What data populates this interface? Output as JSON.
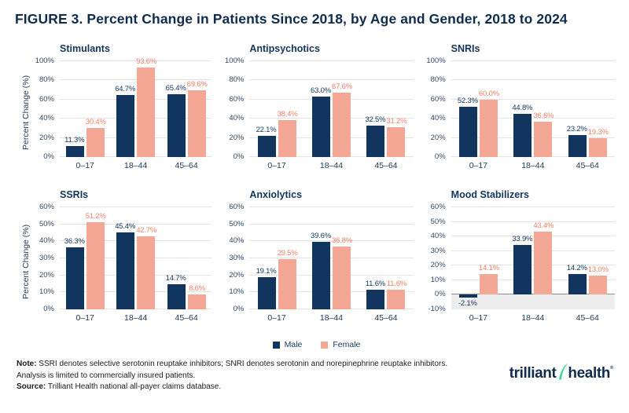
{
  "figure_title": "FIGURE 3. Percent Change in Patients Since 2018, by Age and Gender, 2018 to 2024",
  "colors": {
    "male_bar": "#12355F",
    "female_bar": "#F4A795",
    "male_label": "#12365B",
    "female_label": "#EE8166",
    "grid": "#E3E3E3",
    "zero_line": "#8F8F8F",
    "negative_band": "#EDEDED",
    "title_navy": "#0F2C4E",
    "logo_green": "#3FD6A0"
  },
  "chart_data": [
    {
      "type": "bar",
      "title": "Stimulants",
      "categories": [
        "0–17",
        "18–44",
        "45–64"
      ],
      "series": [
        {
          "name": "Male",
          "values": [
            11.3,
            64.7,
            65.4
          ]
        },
        {
          "name": "Female",
          "values": [
            30.4,
            93.6,
            69.6
          ]
        }
      ],
      "ylabel": "Percent Change (%)",
      "ylim": [
        0,
        100
      ],
      "ytick_step": 20,
      "grid": true
    },
    {
      "type": "bar",
      "title": "Antipsychotics",
      "categories": [
        "0–17",
        "18–44",
        "45–64"
      ],
      "series": [
        {
          "name": "Male",
          "values": [
            22.1,
            63.0,
            32.5
          ]
        },
        {
          "name": "Female",
          "values": [
            38.4,
            67.6,
            31.2
          ]
        }
      ],
      "ylabel": "",
      "ylim": [
        0,
        100
      ],
      "ytick_step": 20,
      "grid": true
    },
    {
      "type": "bar",
      "title": "SNRIs",
      "categories": [
        "0–17",
        "18–44",
        "45–64"
      ],
      "series": [
        {
          "name": "Male",
          "values": [
            52.3,
            44.8,
            23.2
          ]
        },
        {
          "name": "Female",
          "values": [
            60.0,
            36.6,
            19.3
          ]
        }
      ],
      "ylabel": "",
      "ylim": [
        0,
        100
      ],
      "ytick_step": 20,
      "grid": true
    },
    {
      "type": "bar",
      "title": "SSRIs",
      "categories": [
        "0–17",
        "18–44",
        "45–64"
      ],
      "series": [
        {
          "name": "Male",
          "values": [
            36.3,
            45.4,
            14.7
          ]
        },
        {
          "name": "Female",
          "values": [
            51.2,
            42.7,
            8.6
          ]
        }
      ],
      "ylabel": "Percent Change (%)",
      "ylim": [
        0,
        60
      ],
      "ytick_step": 10,
      "grid": true
    },
    {
      "type": "bar",
      "title": "Anxiolytics",
      "categories": [
        "0–17",
        "18–44",
        "45–64"
      ],
      "series": [
        {
          "name": "Male",
          "values": [
            19.1,
            39.6,
            11.6
          ]
        },
        {
          "name": "Female",
          "values": [
            29.5,
            36.8,
            11.6
          ]
        }
      ],
      "ylabel": "",
      "ylim": [
        0,
        60
      ],
      "ytick_step": 10,
      "grid": true
    },
    {
      "type": "bar",
      "title": "Mood Stabilizers",
      "categories": [
        "0–17",
        "18–44",
        "45–64"
      ],
      "series": [
        {
          "name": "Male",
          "values": [
            -2.1,
            33.9,
            14.2
          ]
        },
        {
          "name": "Female",
          "values": [
            14.1,
            43.4,
            13.0
          ]
        }
      ],
      "ylabel": "",
      "ylim": [
        -10,
        60
      ],
      "ytick_step": 10,
      "grid": true
    }
  ],
  "legend": [
    {
      "label": "Male",
      "color_key": "male_bar"
    },
    {
      "label": "Female",
      "color_key": "female_bar"
    }
  ],
  "footer": {
    "note_label": "Note:",
    "note_text": " SSRI denotes selective serotonin reuptake inhibitors; SNRI denotes serotonin and norepinephrine reuptake inhibitors.",
    "line2": "Analysis is limited to commercially insured patients.",
    "source_label": "Source:",
    "source_text": " Trilliant Health national all-payer claims database."
  },
  "logo": {
    "part1": "trilliant",
    "part2": "health",
    "registered": "®"
  }
}
